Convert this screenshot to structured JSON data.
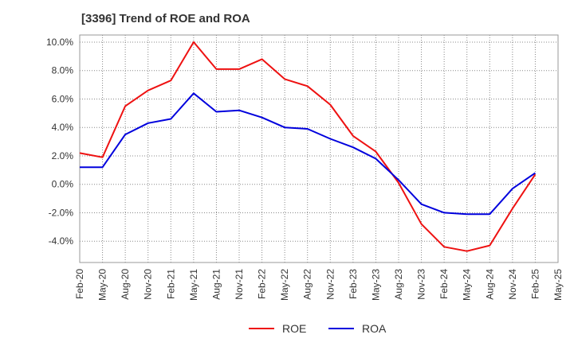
{
  "chart_data": {
    "type": "line",
    "title": "[3396]  Trend of ROE and ROA",
    "xlabel": "",
    "ylabel": "",
    "x": [
      "Feb-20",
      "May-20",
      "Aug-20",
      "Nov-20",
      "Feb-21",
      "May-21",
      "Aug-21",
      "Nov-21",
      "Feb-22",
      "May-22",
      "Aug-22",
      "Nov-22",
      "Feb-23",
      "May-23",
      "Aug-23",
      "Nov-23",
      "Feb-24",
      "May-24",
      "Aug-24",
      "Nov-24",
      "Feb-25",
      "May-25"
    ],
    "y_ticks": [
      "10.0%",
      "8.0%",
      "6.0%",
      "4.0%",
      "2.0%",
      "0.0%",
      "-2.0%",
      "-4.0%"
    ],
    "y_tick_values": [
      10,
      8,
      6,
      4,
      2,
      0,
      -2,
      -4
    ],
    "ylim": [
      -5.5,
      10.5
    ],
    "grid": true,
    "legend_position": "bottom-center",
    "series": [
      {
        "name": "ROE",
        "color": "#ee1111",
        "values": [
          2.2,
          1.9,
          5.5,
          6.6,
          7.3,
          10.0,
          8.1,
          8.1,
          8.8,
          7.4,
          6.9,
          5.6,
          3.4,
          2.3,
          0.1,
          -2.8,
          -4.4,
          -4.7,
          -4.3,
          -1.7,
          0.7,
          null
        ]
      },
      {
        "name": "ROA",
        "color": "#0000dd",
        "values": [
          1.2,
          1.2,
          3.5,
          4.3,
          4.6,
          6.4,
          5.1,
          5.2,
          4.7,
          4.0,
          3.9,
          3.2,
          2.6,
          1.8,
          0.3,
          -1.4,
          -2.0,
          -2.1,
          -2.1,
          -0.3,
          0.8,
          null
        ]
      }
    ]
  }
}
